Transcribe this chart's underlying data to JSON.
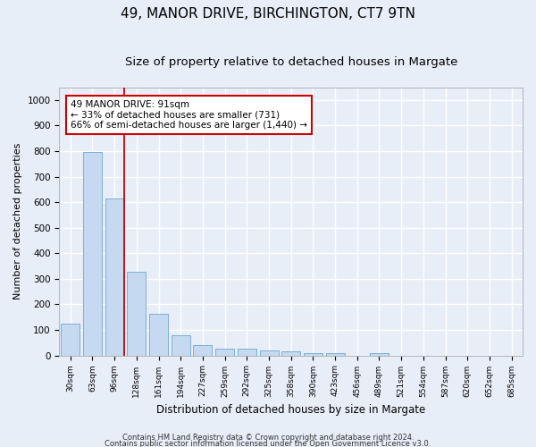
{
  "title1": "49, MANOR DRIVE, BIRCHINGTON, CT7 9TN",
  "title2": "Size of property relative to detached houses in Margate",
  "xlabel": "Distribution of detached houses by size in Margate",
  "ylabel": "Number of detached properties",
  "categories": [
    "30sqm",
    "63sqm",
    "96sqm",
    "128sqm",
    "161sqm",
    "194sqm",
    "227sqm",
    "259sqm",
    "292sqm",
    "325sqm",
    "358sqm",
    "390sqm",
    "423sqm",
    "456sqm",
    "489sqm",
    "521sqm",
    "554sqm",
    "587sqm",
    "620sqm",
    "652sqm",
    "685sqm"
  ],
  "values": [
    125,
    795,
    615,
    328,
    162,
    78,
    40,
    28,
    25,
    20,
    16,
    10,
    10,
    0,
    10,
    0,
    0,
    0,
    0,
    0,
    0
  ],
  "bar_color": "#c5d9f0",
  "bar_edge_color": "#7bafd4",
  "red_line_index": 2,
  "annotation_text": "49 MANOR DRIVE: 91sqm\n← 33% of detached houses are smaller (731)\n66% of semi-detached houses are larger (1,440) →",
  "annotation_box_color": "#ffffff",
  "annotation_box_edge_color": "#cc0000",
  "ylim": [
    0,
    1050
  ],
  "yticks": [
    0,
    100,
    200,
    300,
    400,
    500,
    600,
    700,
    800,
    900,
    1000
  ],
  "footer1": "Contains HM Land Registry data © Crown copyright and database right 2024.",
  "footer2": "Contains public sector information licensed under the Open Government Licence v3.0.",
  "bg_color": "#e8eef8",
  "grid_color": "#ffffff",
  "title1_fontsize": 11,
  "title2_fontsize": 9.5
}
